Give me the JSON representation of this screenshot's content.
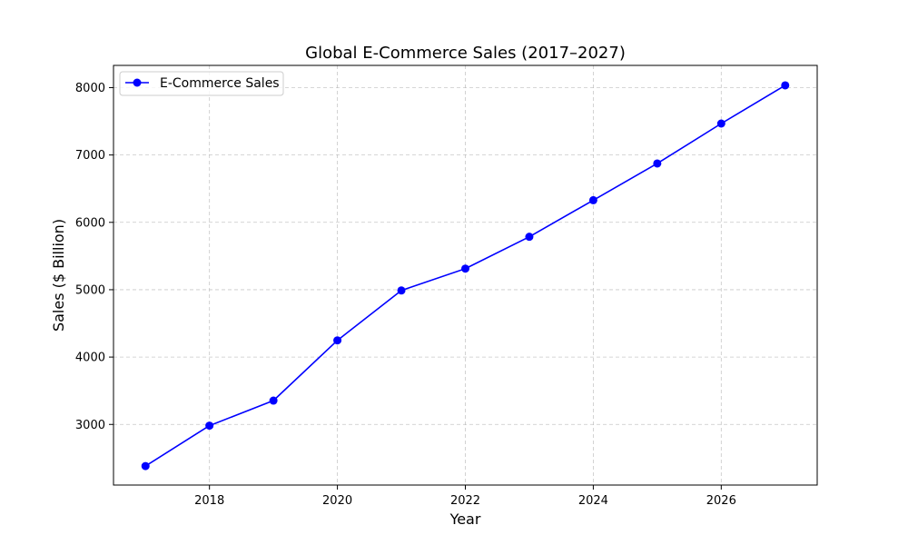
{
  "chart_data": {
    "type": "line",
    "title": "Global E-Commerce Sales (2017–2027)",
    "xlabel": "Year",
    "ylabel": "Sales ($ Billion)",
    "x": [
      2017,
      2018,
      2019,
      2020,
      2021,
      2022,
      2023,
      2024,
      2025,
      2026,
      2027
    ],
    "series": [
      {
        "name": "E-Commerce Sales",
        "values": [
          2382,
          2982,
          3354,
          4248,
          4989,
          5313,
          5786,
          6329,
          6874,
          7467,
          8034
        ],
        "color": "#0000ff",
        "marker": "circle"
      }
    ],
    "xlim": [
      2016.5,
      2027.5
    ],
    "ylim": [
      2100,
      8330
    ],
    "xticks": [
      2018,
      2020,
      2022,
      2024,
      2026
    ],
    "yticks": [
      3000,
      4000,
      5000,
      6000,
      7000,
      8000
    ],
    "grid": true,
    "grid_style": "dashed",
    "legend_position": "top-left"
  }
}
